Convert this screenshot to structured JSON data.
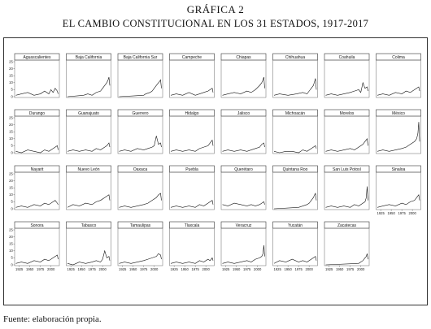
{
  "header": {
    "title": "GRÁFICA 2",
    "subtitle": "EL CAMBIO CONSTITUCIONAL EN LOS 31 ESTADOS, 1917-2017"
  },
  "footer": {
    "source": "Fuente: elaboración propia."
  },
  "chart_data": {
    "type": "line",
    "layout": "small-multiples",
    "columns": 8,
    "x_ticks": [
      1925,
      1950,
      1975,
      2000
    ],
    "y_ticks": [
      0,
      5,
      10,
      15,
      20,
      25
    ],
    "xlim": [
      1917,
      2017
    ],
    "ylim": [
      0,
      25
    ],
    "grid": false,
    "panels": [
      {
        "name": "Aguascalientes",
        "x": [
          1917,
          1930,
          1945,
          1960,
          1975,
          1985,
          1995,
          2000,
          2005,
          2010,
          2015,
          2017
        ],
        "values": [
          1,
          2,
          3,
          1,
          2,
          4,
          2,
          5,
          3,
          6,
          4,
          2
        ]
      },
      {
        "name": "Baja California",
        "x": [
          1917,
          1955,
          1965,
          1975,
          1985,
          1995,
          2000,
          2005,
          2010,
          2013,
          2015,
          2017
        ],
        "values": [
          0,
          1,
          2,
          1,
          3,
          4,
          6,
          8,
          10,
          12,
          14,
          8
        ]
      },
      {
        "name": "Baja California Sur",
        "x": [
          1917,
          1975,
          1980,
          1990,
          1995,
          2000,
          2005,
          2010,
          2013,
          2015,
          2017
        ],
        "values": [
          0,
          1,
          2,
          3,
          4,
          6,
          8,
          10,
          11,
          12,
          6
        ]
      },
      {
        "name": "Campeche",
        "x": [
          1917,
          1930,
          1945,
          1960,
          1975,
          1985,
          1995,
          2005,
          2010,
          2015,
          2017
        ],
        "values": [
          1,
          2,
          1,
          3,
          1,
          2,
          3,
          4,
          5,
          6,
          3
        ]
      },
      {
        "name": "Chiapas",
        "x": [
          1917,
          1930,
          1945,
          1960,
          1975,
          1985,
          1995,
          2005,
          2010,
          2013,
          2015,
          2017
        ],
        "values": [
          1,
          2,
          3,
          2,
          4,
          3,
          5,
          8,
          10,
          12,
          14,
          6
        ]
      },
      {
        "name": "Chihuahua",
        "x": [
          1917,
          1930,
          1950,
          1970,
          1985,
          1995,
          2000,
          2005,
          2010,
          2013,
          2015,
          2017
        ],
        "values": [
          1,
          2,
          1,
          2,
          3,
          2,
          4,
          6,
          8,
          11,
          13,
          5
        ]
      },
      {
        "name": "Coahuila",
        "x": [
          1917,
          1930,
          1945,
          1960,
          1975,
          1985,
          1995,
          2000,
          2005,
          2010,
          2015,
          2017
        ],
        "values": [
          1,
          2,
          1,
          2,
          3,
          4,
          5,
          3,
          10,
          6,
          7,
          4
        ]
      },
      {
        "name": "Colima",
        "x": [
          1917,
          1930,
          1945,
          1960,
          1975,
          1985,
          1995,
          2005,
          2010,
          2015,
          2017
        ],
        "values": [
          1,
          2,
          1,
          3,
          2,
          4,
          3,
          5,
          6,
          7,
          4
        ]
      },
      {
        "name": "Durango",
        "x": [
          1917,
          1930,
          1945,
          1960,
          1975,
          1985,
          1995,
          2005,
          2010,
          2015,
          2017
        ],
        "values": [
          1,
          0,
          2,
          1,
          0,
          2,
          1,
          3,
          4,
          5,
          2
        ]
      },
      {
        "name": "Guanajuato",
        "x": [
          1917,
          1930,
          1945,
          1960,
          1975,
          1985,
          1995,
          2005,
          2010,
          2015,
          2017
        ],
        "values": [
          1,
          2,
          1,
          2,
          1,
          3,
          2,
          4,
          5,
          7,
          4
        ]
      },
      {
        "name": "Guerrero",
        "x": [
          1917,
          1930,
          1945,
          1960,
          1975,
          1985,
          1995,
          2000,
          2005,
          2010,
          2015,
          2017
        ],
        "values": [
          1,
          2,
          1,
          3,
          2,
          3,
          4,
          5,
          12,
          6,
          7,
          4
        ]
      },
      {
        "name": "Hidalgo",
        "x": [
          1917,
          1930,
          1945,
          1960,
          1975,
          1985,
          1995,
          2005,
          2010,
          2015,
          2017
        ],
        "values": [
          1,
          2,
          1,
          2,
          1,
          3,
          4,
          5,
          7,
          9,
          5
        ]
      },
      {
        "name": "Jalisco",
        "x": [
          1917,
          1930,
          1945,
          1960,
          1975,
          1985,
          1995,
          2005,
          2010,
          2015,
          2017
        ],
        "values": [
          1,
          2,
          1,
          2,
          1,
          2,
          3,
          4,
          6,
          7,
          4
        ]
      },
      {
        "name": "Michoacán",
        "x": [
          1917,
          1930,
          1945,
          1960,
          1975,
          1985,
          1995,
          2005,
          2010,
          2015,
          2017
        ],
        "values": [
          1,
          0,
          1,
          1,
          0,
          2,
          1,
          3,
          4,
          5,
          3
        ]
      },
      {
        "name": "Morelos",
        "x": [
          1917,
          1930,
          1945,
          1960,
          1975,
          1985,
          1995,
          2005,
          2010,
          2015,
          2017
        ],
        "values": [
          1,
          2,
          1,
          2,
          3,
          2,
          4,
          6,
          8,
          10,
          5
        ]
      },
      {
        "name": "México",
        "x": [
          1917,
          1930,
          1945,
          1960,
          1975,
          1985,
          1995,
          2005,
          2010,
          2013,
          2015,
          2017
        ],
        "values": [
          1,
          2,
          1,
          2,
          3,
          4,
          6,
          8,
          10,
          14,
          22,
          8
        ]
      },
      {
        "name": "Nayarit",
        "x": [
          1917,
          1930,
          1945,
          1960,
          1975,
          1985,
          1995,
          2005,
          2010,
          2015,
          2017
        ],
        "values": [
          1,
          2,
          1,
          3,
          2,
          4,
          3,
          5,
          6,
          4,
          3
        ]
      },
      {
        "name": "Nuevo León",
        "x": [
          1917,
          1930,
          1945,
          1960,
          1975,
          1985,
          1995,
          2005,
          2010,
          2015,
          2017
        ],
        "values": [
          1,
          3,
          2,
          4,
          3,
          5,
          6,
          8,
          9,
          10,
          6
        ]
      },
      {
        "name": "Oaxaca",
        "x": [
          1917,
          1930,
          1945,
          1960,
          1975,
          1985,
          1995,
          2005,
          2010,
          2015,
          2017
        ],
        "values": [
          1,
          2,
          1,
          2,
          3,
          4,
          6,
          8,
          10,
          11,
          6
        ]
      },
      {
        "name": "Puebla",
        "x": [
          1917,
          1930,
          1945,
          1960,
          1975,
          1985,
          1995,
          2005,
          2010,
          2015,
          2017
        ],
        "values": [
          1,
          2,
          1,
          2,
          1,
          3,
          2,
          4,
          5,
          6,
          3
        ]
      },
      {
        "name": "Querétaro",
        "x": [
          1917,
          1930,
          1945,
          1960,
          1975,
          1985,
          1995,
          2005,
          2010,
          2015,
          2017
        ],
        "values": [
          3,
          2,
          4,
          3,
          2,
          3,
          2,
          3,
          4,
          5,
          3
        ]
      },
      {
        "name": "Quintana Roo",
        "x": [
          1917,
          1975,
          1985,
          1995,
          2000,
          2005,
          2010,
          2013,
          2015,
          2017
        ],
        "values": [
          0,
          1,
          2,
          3,
          4,
          6,
          8,
          10,
          11,
          6
        ]
      },
      {
        "name": "San Luis Potosí",
        "x": [
          1917,
          1930,
          1945,
          1960,
          1975,
          1985,
          1995,
          2005,
          2010,
          2013,
          2015,
          2017
        ],
        "values": [
          1,
          2,
          1,
          2,
          1,
          3,
          2,
          4,
          5,
          8,
          16,
          6
        ]
      },
      {
        "name": "Sinaloa",
        "x": [
          1917,
          1930,
          1945,
          1960,
          1975,
          1985,
          1995,
          2005,
          2010,
          2015,
          2017
        ],
        "values": [
          1,
          2,
          3,
          2,
          4,
          3,
          5,
          6,
          8,
          10,
          6
        ]
      },
      {
        "name": "Sonora",
        "x": [
          1917,
          1930,
          1945,
          1960,
          1975,
          1985,
          1995,
          2005,
          2010,
          2015,
          2017
        ],
        "values": [
          1,
          2,
          1,
          3,
          2,
          4,
          3,
          5,
          6,
          7,
          4
        ]
      },
      {
        "name": "Tabasco",
        "x": [
          1917,
          1930,
          1945,
          1960,
          1975,
          1985,
          1995,
          2000,
          2005,
          2010,
          2015,
          2017
        ],
        "values": [
          1,
          0,
          2,
          1,
          2,
          3,
          2,
          4,
          10,
          5,
          6,
          3
        ]
      },
      {
        "name": "Tamaulipas",
        "x": [
          1917,
          1930,
          1945,
          1960,
          1975,
          1985,
          1995,
          2005,
          2010,
          2015,
          2017
        ],
        "values": [
          1,
          2,
          1,
          2,
          3,
          4,
          5,
          6,
          8,
          7,
          4
        ]
      },
      {
        "name": "Tlaxcala",
        "x": [
          1917,
          1930,
          1945,
          1960,
          1975,
          1985,
          1995,
          2005,
          2010,
          2015,
          2017
        ],
        "values": [
          1,
          2,
          1,
          2,
          1,
          3,
          2,
          4,
          3,
          5,
          3
        ]
      },
      {
        "name": "Veracruz",
        "x": [
          1917,
          1930,
          1945,
          1960,
          1975,
          1985,
          1995,
          2005,
          2010,
          2013,
          2015,
          2017
        ],
        "values": [
          1,
          2,
          1,
          2,
          3,
          2,
          4,
          5,
          6,
          8,
          14,
          6
        ]
      },
      {
        "name": "Yucatán",
        "x": [
          1917,
          1930,
          1945,
          1960,
          1975,
          1985,
          1995,
          2005,
          2010,
          2015,
          2017
        ],
        "values": [
          1,
          3,
          2,
          4,
          2,
          3,
          2,
          4,
          5,
          6,
          3
        ]
      },
      {
        "name": "Zacatecas",
        "x": [
          1917,
          1995,
          2000,
          2005,
          2010,
          2013,
          2015,
          2017
        ],
        "values": [
          0,
          1,
          2,
          3,
          5,
          6,
          8,
          4
        ]
      }
    ]
  }
}
